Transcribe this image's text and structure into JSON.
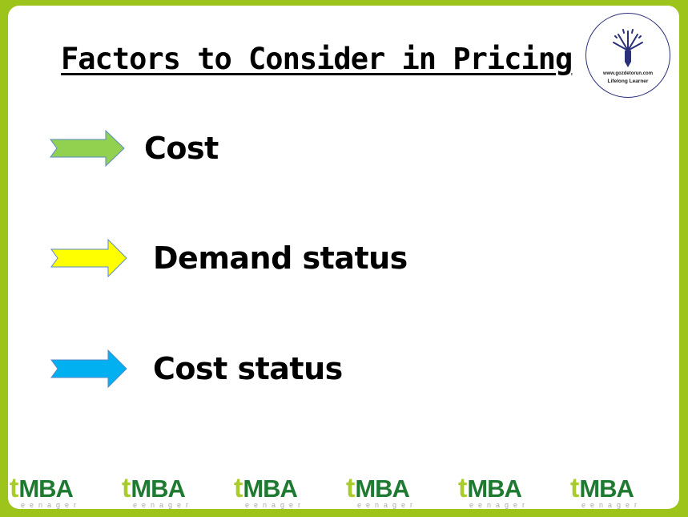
{
  "slide": {
    "title": "Factors to Consider in Pricing",
    "items": [
      {
        "label": "Cost",
        "arrow_color": "#92d050",
        "icon": "arrow-right-icon"
      },
      {
        "label": "Demand status",
        "arrow_color": "#ffff00",
        "icon": "arrow-right-icon"
      },
      {
        "label": "Cost status",
        "arrow_color": "#00b0f0",
        "icon": "arrow-right-icon"
      }
    ]
  },
  "logo": {
    "url": "www.gozdetorun.com",
    "tagline": "Lifelong Learner"
  },
  "footer": {
    "brand_t": "t",
    "brand_mba": "MBA",
    "brand_sub": "eenager"
  },
  "colors": {
    "frame": "#9cc41a",
    "brand_dark": "#1f7a31",
    "brand_light": "#a9cc2c"
  }
}
